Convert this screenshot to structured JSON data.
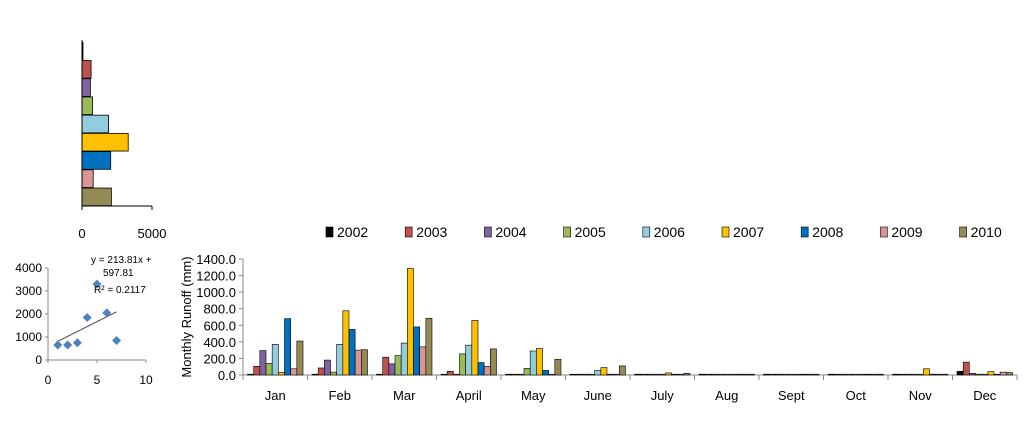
{
  "chart_data": [
    {
      "type": "bar",
      "orientation": "horizontal",
      "categories": [
        "2002",
        "2003",
        "2004",
        "2005",
        "2006",
        "2007",
        "2008",
        "2009",
        "2010"
      ],
      "values": [
        30,
        650,
        600,
        750,
        1900,
        3300,
        2050,
        800,
        2100
      ],
      "colors": [
        "#000000",
        "#c0504d",
        "#8064a2",
        "#9bbb59",
        "#93cddd",
        "#ffc000",
        "#0070c0",
        "#d99694",
        "#948a54"
      ],
      "xticks": [
        "0",
        "5000"
      ],
      "xlim": [
        0,
        5000
      ],
      "grid": false
    },
    {
      "type": "scatter",
      "x": [
        1,
        2,
        3,
        4,
        5,
        6,
        7
      ],
      "y": [
        650,
        650,
        750,
        1850,
        3300,
        2050,
        850
      ],
      "trendline": {
        "slope": 213.81,
        "intercept": 597.81
      },
      "equation": "y = 213.81x +",
      "equation_line2": "597.81",
      "r_squared": "R² = 0.2117",
      "xticks": [
        "0",
        "5",
        "10"
      ],
      "yticks": [
        "0",
        "1000",
        "2000",
        "3000",
        "4000"
      ],
      "xlim": [
        0,
        10
      ],
      "ylim": [
        0,
        4000
      ],
      "marker_color": "#4f81bd"
    },
    {
      "type": "bar",
      "ylabel": "Monthly  Runoff (mm)",
      "ylim": [
        0,
        1400
      ],
      "yticks": [
        "0.0",
        "200.0",
        "400.0",
        "600.0",
        "800.0",
        "1000.0",
        "1200.0",
        "1400.0"
      ],
      "categories": [
        "Jan",
        "Feb",
        "Mar",
        "April",
        "May",
        "June",
        "July",
        "Aug",
        "Sept",
        "Oct",
        "Nov",
        "Dec"
      ],
      "legend_position": "top",
      "grid": false,
      "series": [
        {
          "name": "2002",
          "color": "#000000",
          "values": [
            0,
            0,
            0,
            0,
            0,
            0,
            0,
            0,
            0,
            0,
            0,
            45
          ]
        },
        {
          "name": "2003",
          "color": "#c0504d",
          "values": [
            105,
            85,
            215,
            45,
            0,
            0,
            0,
            0,
            0,
            0,
            0,
            155
          ]
        },
        {
          "name": "2004",
          "color": "#8064a2",
          "values": [
            295,
            180,
            135,
            0,
            0,
            0,
            0,
            0,
            0,
            0,
            0,
            20
          ]
        },
        {
          "name": "2005",
          "color": "#9bbb59",
          "values": [
            140,
            35,
            235,
            255,
            80,
            0,
            0,
            0,
            0,
            0,
            0,
            10
          ]
        },
        {
          "name": "2006",
          "color": "#93cddd",
          "values": [
            370,
            370,
            385,
            360,
            290,
            55,
            0,
            0,
            0,
            0,
            0,
            0
          ]
        },
        {
          "name": "2007",
          "color": "#ffc000",
          "values": [
            30,
            775,
            1285,
            660,
            320,
            90,
            25,
            0,
            0,
            0,
            75,
            40
          ]
        },
        {
          "name": "2008",
          "color": "#0070c0",
          "values": [
            680,
            550,
            580,
            150,
            55,
            0,
            0,
            0,
            0,
            0,
            0,
            0
          ]
        },
        {
          "name": "2009",
          "color": "#d99694",
          "values": [
            75,
            300,
            340,
            105,
            0,
            0,
            0,
            0,
            0,
            0,
            0,
            35
          ]
        },
        {
          "name": "2010",
          "color": "#948a54",
          "values": [
            410,
            305,
            685,
            315,
            190,
            110,
            20,
            0,
            0,
            0,
            0,
            30
          ]
        }
      ]
    }
  ]
}
